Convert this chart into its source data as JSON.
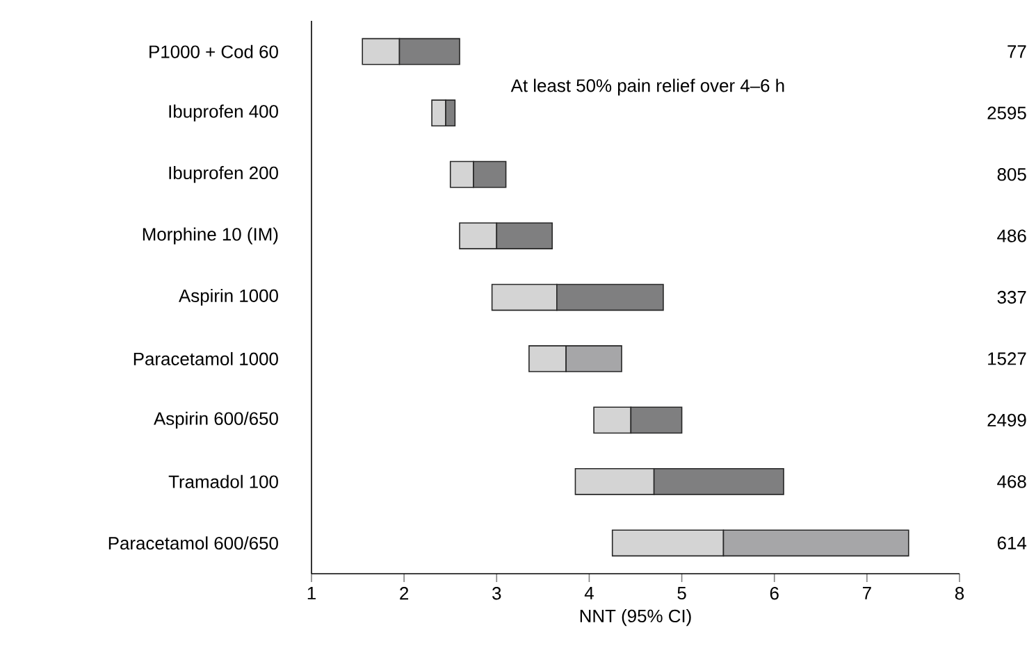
{
  "chart_data": {
    "type": "bar",
    "orientation": "horizontal",
    "categories": [
      "P1000 + Cod 60",
      "Ibuprofen 400",
      "Ibuprofen 200",
      "Morphine 10 (IM)",
      "Aspirin 1000",
      "Paracetamol 1000",
      "Aspirin 600/650",
      "Tramadol 100",
      "Paracetamol 600/650"
    ],
    "series": [
      {
        "base": [
          1.55,
          2.3,
          2.5,
          2.6,
          2.95,
          3.35,
          4.05,
          3.85,
          4.25
        ],
        "values": [
          0.4,
          0.15,
          0.25,
          0.4,
          0.7,
          0.4,
          0.4,
          0.85,
          1.2
        ],
        "colors": [
          "#d4d4d4",
          "#d4d4d4",
          "#d4d4d4",
          "#d4d4d4",
          "#d4d4d4",
          "#d4d4d4",
          "#d4d4d4",
          "#d4d4d4",
          "#d4d4d4"
        ]
      },
      {
        "base": [
          1.95,
          2.45,
          2.75,
          3.0,
          3.65,
          3.75,
          4.45,
          4.7,
          5.45
        ],
        "values": [
          0.65,
          0.1,
          0.35,
          0.6,
          1.15,
          0.6,
          0.55,
          1.4,
          2.0
        ],
        "colors": [
          "#7f7f80",
          "#7f7f80",
          "#7f7f80",
          "#7f7f80",
          "#7f7f80",
          "#a6a6a8",
          "#7f7f80",
          "#7f7f80",
          "#a6a6a8"
        ]
      }
    ],
    "xlabel": "NNT (95% CI)",
    "xlim": [
      1,
      8
    ],
    "xticks": [
      1,
      2,
      3,
      4,
      5,
      6,
      7,
      8
    ],
    "grid": false,
    "annotations": [
      "At least 50% pain relief over 4–6 h",
      "77",
      "2595",
      "805",
      "486",
      "337",
      "1527",
      "2499",
      "468",
      "614"
    ]
  }
}
